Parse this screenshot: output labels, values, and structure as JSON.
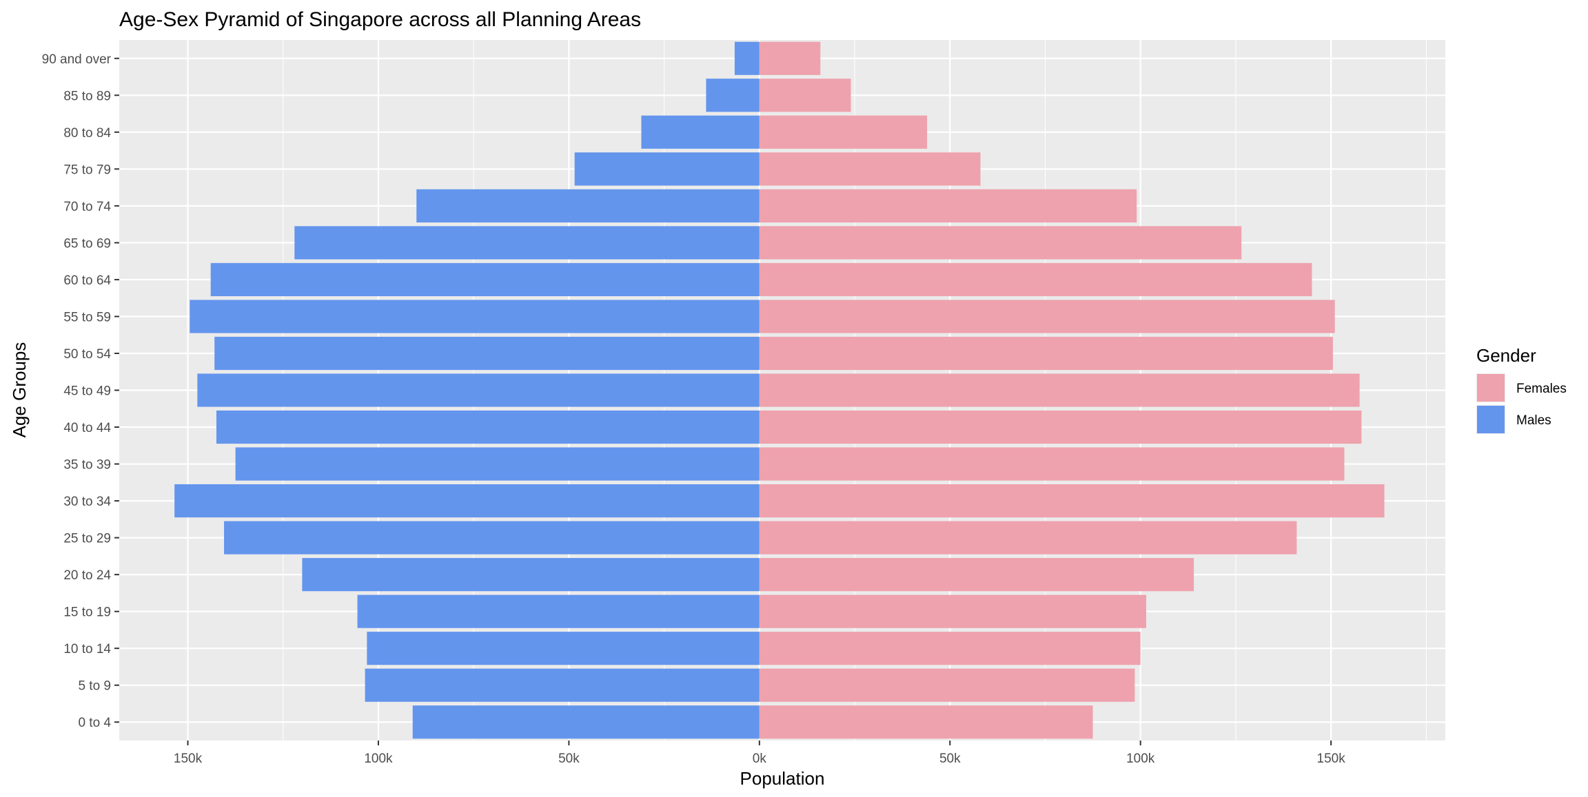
{
  "chart_data": {
    "type": "bar",
    "orientation": "horizontal",
    "title": "Age-Sex Pyramid of Singapore across all Planning Areas",
    "xlabel": "Population",
    "ylabel": "Age Groups",
    "xlim": [
      -168000,
      180000
    ],
    "x_ticks": [
      -150000,
      -100000,
      -50000,
      0,
      50000,
      100000,
      150000
    ],
    "x_tick_labels": [
      "150k",
      "100k",
      "50k",
      "0k",
      "50k",
      "100k",
      "150k"
    ],
    "grid": true,
    "categories": [
      "0 to 4",
      "5 to 9",
      "10 to 14",
      "15 to 19",
      "20 to 24",
      "25 to 29",
      "30 to 34",
      "35 to 39",
      "40 to 44",
      "45 to 49",
      "50 to 54",
      "55 to 59",
      "60 to 64",
      "65 to 69",
      "70 to 74",
      "75 to 79",
      "80 to 84",
      "85 to 89",
      "90 and over"
    ],
    "series": [
      {
        "name": "Males",
        "color": "#6495ED",
        "values": [
          -91000,
          -103500,
          -103000,
          -105500,
          -120000,
          -140500,
          -153500,
          -137500,
          -142500,
          -147500,
          -143000,
          -149500,
          -144000,
          -122000,
          -90000,
          -48500,
          -31000,
          -14000,
          -6500
        ]
      },
      {
        "name": "Females",
        "color": "#EEA2AD",
        "values": [
          87500,
          98500,
          100000,
          101500,
          114000,
          141000,
          164000,
          153500,
          158000,
          157500,
          150500,
          151000,
          145000,
          126500,
          99000,
          58000,
          44000,
          24000,
          16000
        ]
      }
    ],
    "legend": {
      "title": "Gender",
      "position": "right",
      "entries": [
        {
          "label": "Females",
          "color": "#EEA2AD"
        },
        {
          "label": "Males",
          "color": "#6495ED"
        }
      ]
    },
    "panel_background": "#EBEBEB",
    "gridline_color": "#FFFFFF"
  }
}
